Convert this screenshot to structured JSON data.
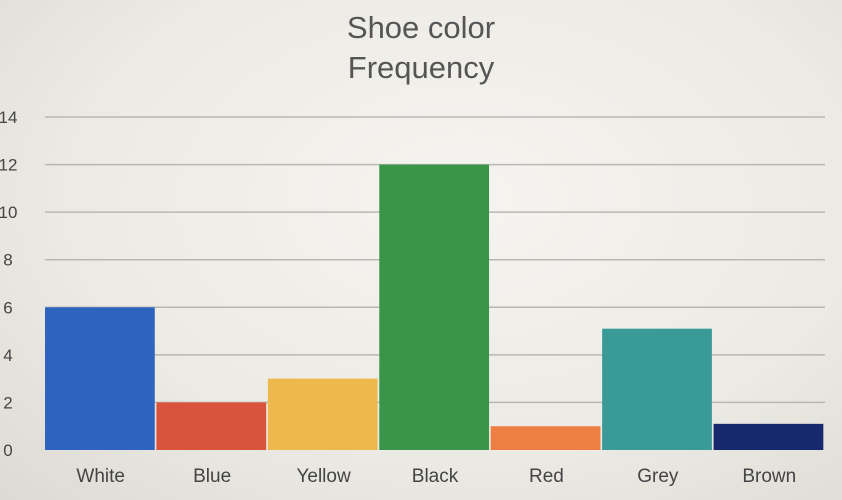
{
  "chart_data": {
    "type": "bar",
    "title_lines": [
      "Shoe color",
      "Frequency"
    ],
    "categories": [
      "White",
      "Blue",
      "Yellow",
      "Black",
      "Red",
      "Grey",
      "Brown"
    ],
    "values": [
      6,
      2,
      3,
      12,
      1,
      5.1,
      1.1
    ],
    "colors": [
      "#2f63c0",
      "#d9533d",
      "#edb94c",
      "#3a954a",
      "#ee7f43",
      "#3a9a98",
      "#16286e"
    ],
    "ylim": [
      0,
      14
    ],
    "yticks": [
      0,
      2,
      4,
      6,
      8,
      10,
      12,
      14
    ],
    "grid": true,
    "legend": "none"
  }
}
